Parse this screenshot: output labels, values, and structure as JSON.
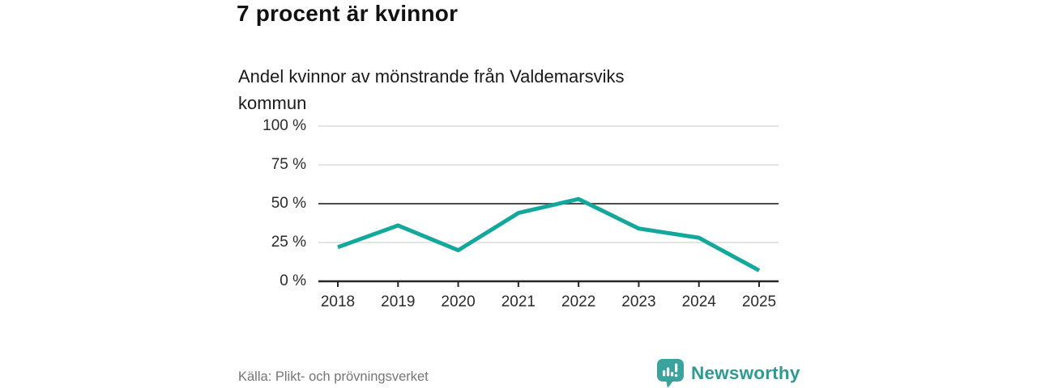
{
  "header": {
    "title": "7 procent är kvinnor",
    "subtitle": "Andel kvinnor av mönstrande från Valdemarsviks\nkommun"
  },
  "chart_data": {
    "type": "line",
    "title": "7 procent är kvinnor",
    "subtitle": "Andel kvinnor av mönstrande från Valdemarsviks kommun",
    "categories": [
      "2018",
      "2019",
      "2020",
      "2021",
      "2022",
      "2023",
      "2024",
      "2025"
    ],
    "series": [
      {
        "name": "Andel kvinnor av mönstrande",
        "values": [
          22,
          36,
          20,
          44,
          53,
          34,
          28,
          7
        ]
      }
    ],
    "unit": "%",
    "xlabel": "",
    "ylabel": "",
    "ylim": [
      0,
      100
    ],
    "y_ticks": [
      0,
      25,
      50,
      75,
      100
    ],
    "y_tick_labels": [
      "0 %",
      "25 %",
      "50 %",
      "75 %",
      "100 %"
    ],
    "reference_line": 50,
    "grid": "horizontal",
    "legend": "none"
  },
  "colors": {
    "accent_line": "#14a79c",
    "grid": "#dcdcdc",
    "reference": "#4d4d4d",
    "axis": "#262626",
    "brand": "#3aa39d",
    "brand_text": "#2d9a93"
  },
  "footer": {
    "source": "Källa: Plikt- och prövningsverket",
    "brand": "Newsworthy",
    "logo_icon": "bar-chart-speech-bubble-icon"
  }
}
